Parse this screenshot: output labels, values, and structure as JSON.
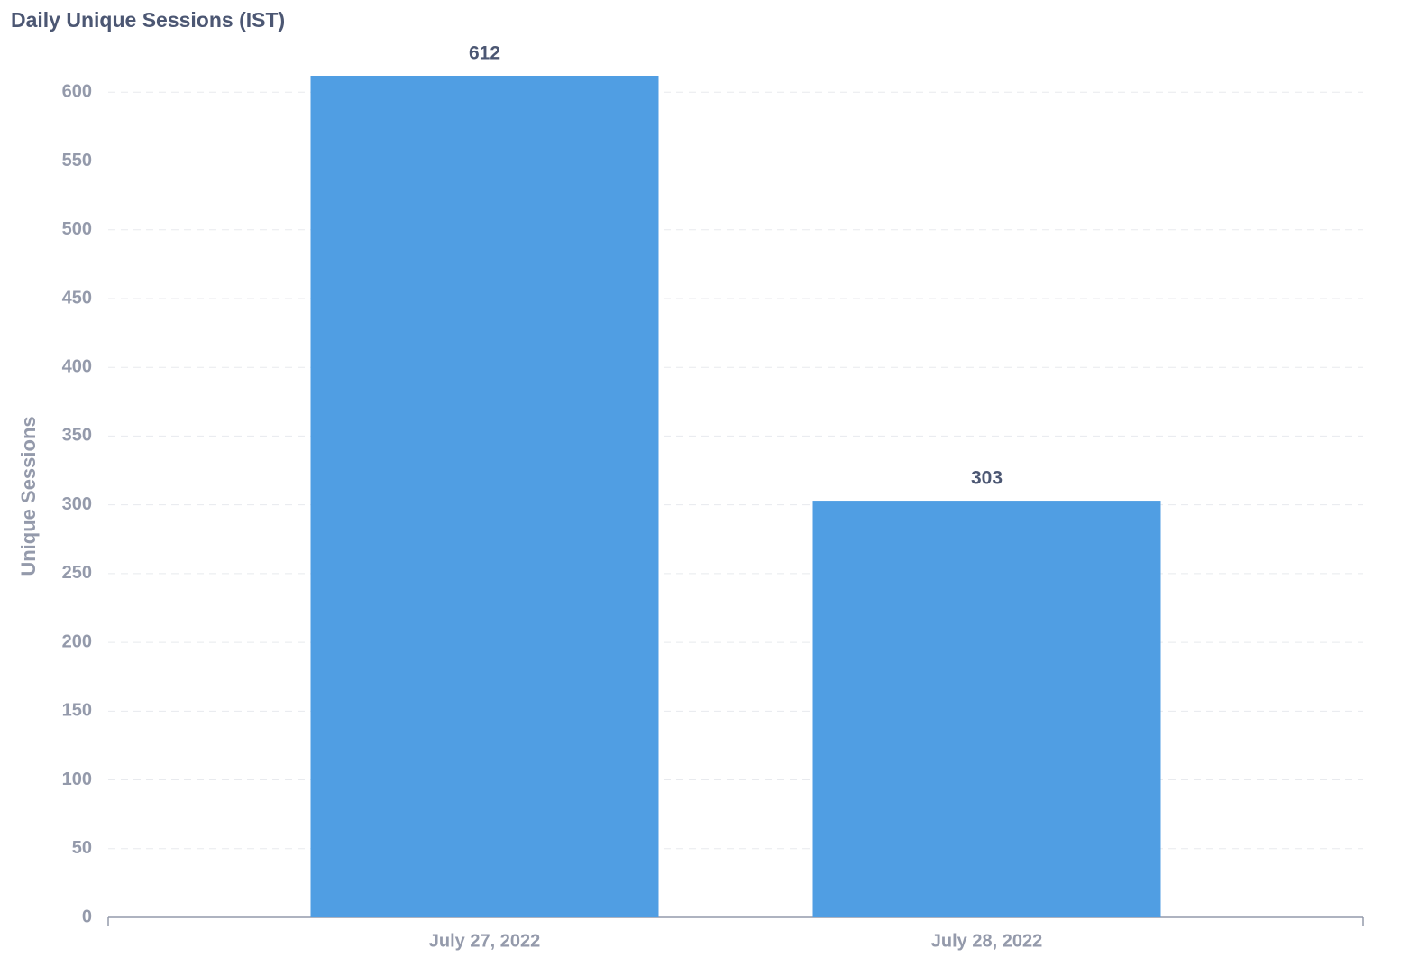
{
  "chart_data": {
    "type": "bar",
    "title": "Daily Unique Sessions (IST)",
    "y_label": "Unique Sessions",
    "categories": [
      "July 27, 2022",
      "July 28, 2022"
    ],
    "values": [
      612,
      303
    ],
    "color": "#509ee3",
    "ylim": [
      0,
      612
    ],
    "yticks": [
      0,
      50,
      100,
      150,
      200,
      250,
      300,
      350,
      400,
      450,
      500,
      550,
      600
    ],
    "grid": true
  }
}
